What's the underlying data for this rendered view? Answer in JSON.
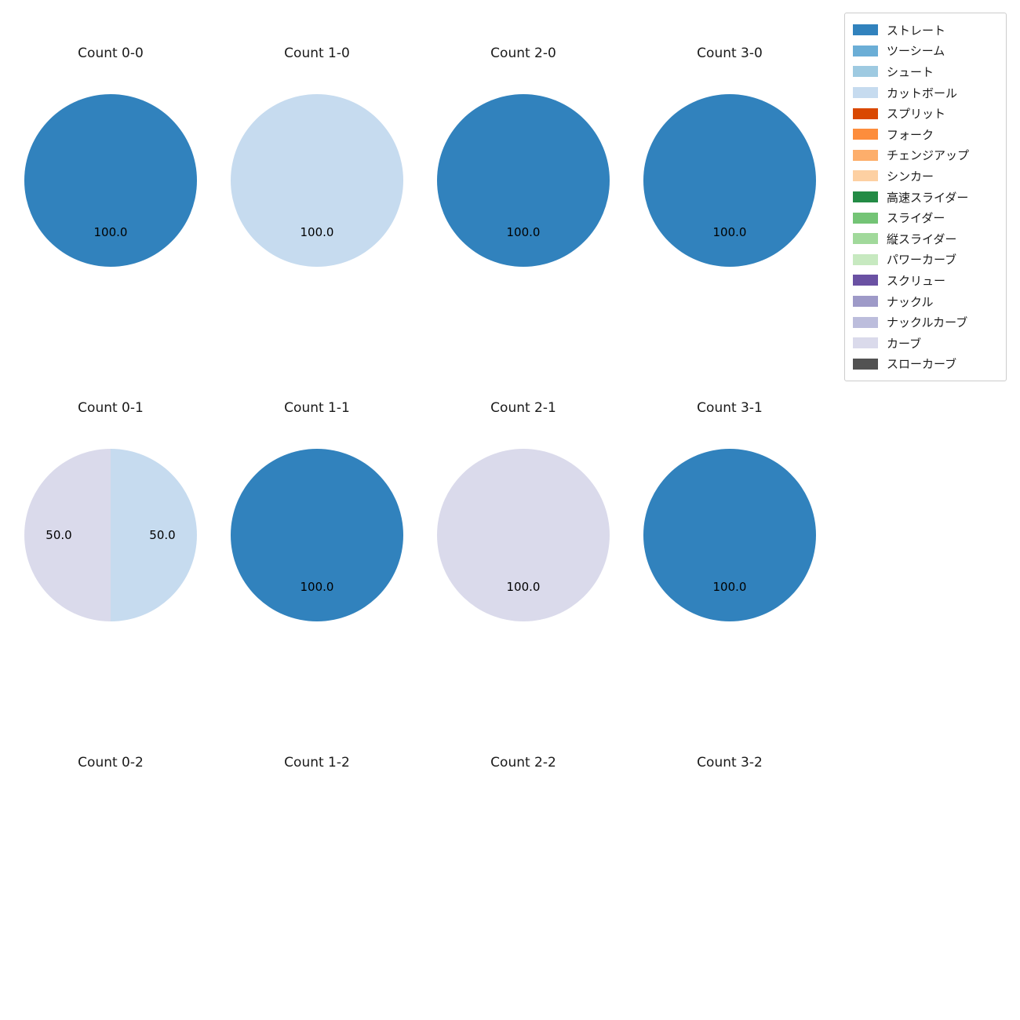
{
  "chart_data": {
    "type": "pie",
    "title": "",
    "grid_columns": 4,
    "legend_position": "upper right",
    "value_format_decimals": 1,
    "charts": [
      {
        "title": "Count 0-0",
        "slices": [
          {
            "label": "ストレート",
            "value": 100.0
          }
        ]
      },
      {
        "title": "Count 1-0",
        "slices": [
          {
            "label": "カットボール",
            "value": 100.0
          }
        ]
      },
      {
        "title": "Count 2-0",
        "slices": [
          {
            "label": "ストレート",
            "value": 100.0
          }
        ]
      },
      {
        "title": "Count 3-0",
        "slices": [
          {
            "label": "ストレート",
            "value": 100.0
          }
        ]
      },
      {
        "title": "Count 0-1",
        "slices": [
          {
            "label": "カットボール",
            "value": 50.0
          },
          {
            "label": "カーブ",
            "value": 50.0
          }
        ]
      },
      {
        "title": "Count 1-1",
        "slices": [
          {
            "label": "ストレート",
            "value": 100.0
          }
        ]
      },
      {
        "title": "Count 2-1",
        "slices": [
          {
            "label": "カーブ",
            "value": 100.0
          }
        ]
      },
      {
        "title": "Count 3-1",
        "slices": [
          {
            "label": "ストレート",
            "value": 100.0
          }
        ]
      },
      {
        "title": "Count 0-2",
        "slices": []
      },
      {
        "title": "Count 1-2",
        "slices": []
      },
      {
        "title": "Count 2-2",
        "slices": []
      },
      {
        "title": "Count 3-2",
        "slices": []
      }
    ],
    "legend": [
      {
        "label": "ストレート",
        "color": "#3182bd"
      },
      {
        "label": "ツーシーム",
        "color": "#6baed6"
      },
      {
        "label": "シュート",
        "color": "#9ecae1"
      },
      {
        "label": "カットボール",
        "color": "#c6dbef"
      },
      {
        "label": "スプリット",
        "color": "#d94801"
      },
      {
        "label": "フォーク",
        "color": "#fd8d3c"
      },
      {
        "label": "チェンジアップ",
        "color": "#fdae6b"
      },
      {
        "label": "シンカー",
        "color": "#fdd0a2"
      },
      {
        "label": "高速スライダー",
        "color": "#238b45"
      },
      {
        "label": "スライダー",
        "color": "#74c476"
      },
      {
        "label": "縦スライダー",
        "color": "#a1d99b"
      },
      {
        "label": "パワーカーブ",
        "color": "#c7e9c0"
      },
      {
        "label": "スクリュー",
        "color": "#6a51a3"
      },
      {
        "label": "ナックル",
        "color": "#9e9ac8"
      },
      {
        "label": "ナックルカーブ",
        "color": "#bcbddc"
      },
      {
        "label": "カーブ",
        "color": "#dadaeb"
      },
      {
        "label": "スローカーブ",
        "color": "#525252"
      }
    ]
  }
}
